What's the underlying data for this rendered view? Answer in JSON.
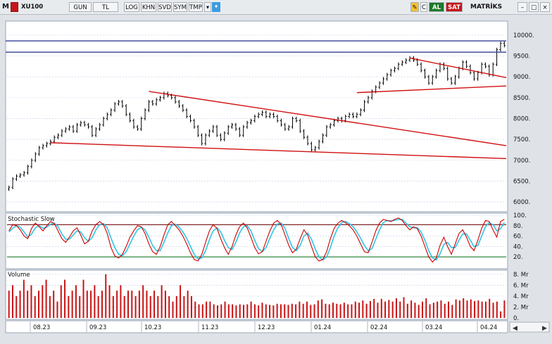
{
  "toolbar": {
    "m_label": "M",
    "symbol": "XU100",
    "period": "GUN",
    "currency": "TL",
    "log": "LOG",
    "khn": "KHN",
    "svd": "SVD",
    "sym": "SYM",
    "tmp": "TMP",
    "c_label": "C",
    "al": "AL",
    "sat": "SAT",
    "brand": "MATRİKS",
    "colors": {
      "al_bg": "#1d7a2b",
      "sat_bg": "#c8141a",
      "twitter": "#3b9be0"
    }
  },
  "chart_data": [
    {
      "type": "candlestick",
      "ylim": [
        5800,
        10300
      ],
      "yticks": [
        "10000.",
        "9500.",
        "9000.",
        "8500.",
        "8000.",
        "7500.",
        "7000.",
        "6500.",
        "6000."
      ],
      "ytick_values": [
        10000,
        9500,
        9000,
        8500,
        8000,
        7500,
        7000,
        6500,
        6000
      ],
      "xticks": [
        "08.23",
        "09.23",
        "10.23",
        "11.23",
        "12.23",
        "01.24",
        "02.24",
        "03.24",
        "04.24"
      ],
      "close": [
        6350,
        6550,
        6620,
        6650,
        6700,
        6850,
        7000,
        7150,
        7300,
        7350,
        7400,
        7450,
        7550,
        7600,
        7700,
        7750,
        7800,
        7700,
        7850,
        7900,
        7850,
        7800,
        7600,
        7750,
        7850,
        8000,
        8100,
        8200,
        8350,
        8400,
        8300,
        8100,
        7950,
        7800,
        7750,
        8000,
        8200,
        8400,
        8350,
        8450,
        8500,
        8600,
        8550,
        8500,
        8400,
        8300,
        8200,
        8050,
        7950,
        7800,
        7600,
        7400,
        7600,
        7700,
        7800,
        7600,
        7500,
        7650,
        7800,
        7850,
        7750,
        7600,
        7800,
        7900,
        7950,
        8050,
        8100,
        8150,
        8050,
        8100,
        8050,
        7950,
        7850,
        7750,
        7800,
        8000,
        7950,
        7700,
        7550,
        7400,
        7250,
        7300,
        7450,
        7600,
        7800,
        7850,
        7950,
        8000,
        7950,
        8050,
        8100,
        8050,
        8100,
        8200,
        8400,
        8500,
        8650,
        8750,
        8850,
        8950,
        9050,
        9150,
        9200,
        9300,
        9350,
        9400,
        9450,
        9400,
        9300,
        9150,
        9000,
        8850,
        9000,
        9150,
        9300,
        9200,
        8950,
        8850,
        9000,
        9200,
        9350,
        9250,
        9100,
        8950,
        9100,
        9300,
        9250,
        9050,
        9300,
        9650,
        9800,
        9750
      ],
      "horizontal_levels": [
        9860,
        9590
      ],
      "trendlines": [
        {
          "from": [
            11,
            7420
          ],
          "to": [
            "end",
            7040
          ]
        },
        {
          "from": [
            37,
            8650
          ],
          "to": [
            "end",
            7350
          ]
        },
        {
          "from": [
            106,
            9450
          ],
          "to": [
            "end",
            8980
          ]
        },
        {
          "from": [
            92,
            8620
          ],
          "to": [
            "end",
            8780
          ]
        }
      ],
      "colors": {
        "candle": "#000000",
        "horizontal": "#1f2d8a",
        "trend": "#d01010",
        "grid": "#c8d6ec"
      }
    },
    {
      "type": "line",
      "title": "Stochastic Slow",
      "ylim": [
        0,
        100
      ],
      "yticks": [
        "100.",
        "80.",
        "60.",
        "40.",
        "20."
      ],
      "ytick_values": [
        100,
        80,
        60,
        40,
        20
      ],
      "reference_levels": [
        82,
        20
      ],
      "series": [
        {
          "values": [
            70,
            82,
            80,
            72,
            60,
            55,
            75,
            85,
            78,
            70,
            80,
            88,
            84,
            70,
            55,
            48,
            58,
            70,
            76,
            62,
            45,
            50,
            70,
            82,
            88,
            82,
            65,
            38,
            22,
            18,
            25,
            40,
            58,
            70,
            80,
            78,
            65,
            45,
            30,
            25,
            40,
            62,
            82,
            88,
            80,
            72,
            60,
            45,
            28,
            15,
            12,
            25,
            48,
            70,
            82,
            75,
            55,
            38,
            25,
            40,
            62,
            78,
            85,
            76,
            58,
            38,
            26,
            30,
            50,
            70,
            85,
            90,
            82,
            62,
            42,
            28,
            35,
            55,
            72,
            62,
            40,
            20,
            12,
            15,
            30,
            55,
            75,
            85,
            90,
            86,
            80,
            72,
            60,
            45,
            30,
            28,
            48,
            70,
            85,
            92,
            90,
            88,
            92,
            95,
            90,
            80,
            72,
            78,
            74,
            60,
            40,
            20,
            10,
            18,
            42,
            58,
            40,
            25,
            45,
            65,
            72,
            58,
            40,
            32,
            52,
            75,
            90,
            88,
            72,
            58,
            88,
            92
          ]
        },
        {
          "values": [
            68,
            75,
            80,
            77,
            68,
            58,
            64,
            76,
            80,
            75,
            77,
            83,
            85,
            78,
            64,
            54,
            54,
            62,
            70,
            68,
            57,
            50,
            57,
            72,
            82,
            84,
            76,
            56,
            38,
            25,
            22,
            30,
            45,
            60,
            72,
            77,
            72,
            58,
            42,
            32,
            32,
            48,
            66,
            80,
            83,
            77,
            68,
            56,
            40,
            25,
            16,
            18,
            32,
            53,
            70,
            76,
            68,
            52,
            38,
            34,
            48,
            66,
            78,
            80,
            70,
            52,
            36,
            30,
            38,
            56,
            72,
            83,
            85,
            75,
            55,
            38,
            32,
            42,
            60,
            66,
            54,
            35,
            20,
            14,
            20,
            38,
            60,
            76,
            86,
            88,
            84,
            78,
            68,
            56,
            42,
            32,
            36,
            54,
            72,
            86,
            90,
            89,
            90,
            92,
            92,
            85,
            78,
            76,
            76,
            68,
            52,
            32,
            18,
            14,
            26,
            44,
            48,
            38,
            38,
            52,
            64,
            64,
            52,
            40,
            42,
            60,
            78,
            86,
            82,
            70,
            74,
            86
          ]
        }
      ],
      "colors": {
        "k": "#cc0000",
        "d": "#2ec6e6",
        "ref": "#2a2a2a"
      }
    },
    {
      "type": "bar",
      "title": "Volume",
      "ylim": [
        0,
        8.5
      ],
      "yticks": [
        "8. Mr",
        "6. Mr",
        "4. Mr",
        "2. Mr",
        "0."
      ],
      "ytick_values": [
        8,
        6,
        4,
        2,
        0
      ],
      "values": [
        5,
        6,
        4,
        5,
        7,
        5,
        6,
        4,
        5,
        6,
        7,
        4,
        5,
        3,
        6,
        7,
        4,
        5,
        6,
        4,
        7,
        5,
        5,
        6,
        4,
        5,
        8,
        6,
        4,
        5,
        6,
        4,
        5,
        5,
        4,
        5,
        6,
        5,
        4,
        5,
        4,
        6,
        5,
        4,
        3,
        4,
        6,
        4,
        5,
        4,
        3,
        2.5,
        2.5,
        3,
        3,
        2.5,
        2.3,
        2.5,
        3,
        2.5,
        2.5,
        2.3,
        2.5,
        2.4,
        2.5,
        3,
        2.5,
        2.3,
        2.8,
        2.5,
        2.4,
        2.3,
        2.6,
        2.5,
        2.5,
        2.4,
        2.6,
        2.5,
        3,
        2.6,
        3,
        2.4,
        2.5,
        3.2,
        3.4,
        2.6,
        2.5,
        2.8,
        2.6,
        2.5,
        2.8,
        2.5,
        2.5,
        3,
        2.8,
        3.2,
        2.6,
        3.1,
        3.5,
        2.8,
        3.5,
        3,
        3.3,
        3,
        3.6,
        3,
        3.8,
        2.6,
        3.2,
        2.8,
        2.4,
        3,
        3.6,
        2.5,
        2.8,
        3,
        3.2,
        2.6,
        3,
        2.4,
        3.4,
        3.2,
        3.6,
        3.2,
        3.4,
        3.1,
        3.2,
        3,
        3,
        3.5,
        2.8,
        3,
        1.2,
        3.2
      ],
      "colors": {
        "bar": "#c81414"
      }
    }
  ]
}
